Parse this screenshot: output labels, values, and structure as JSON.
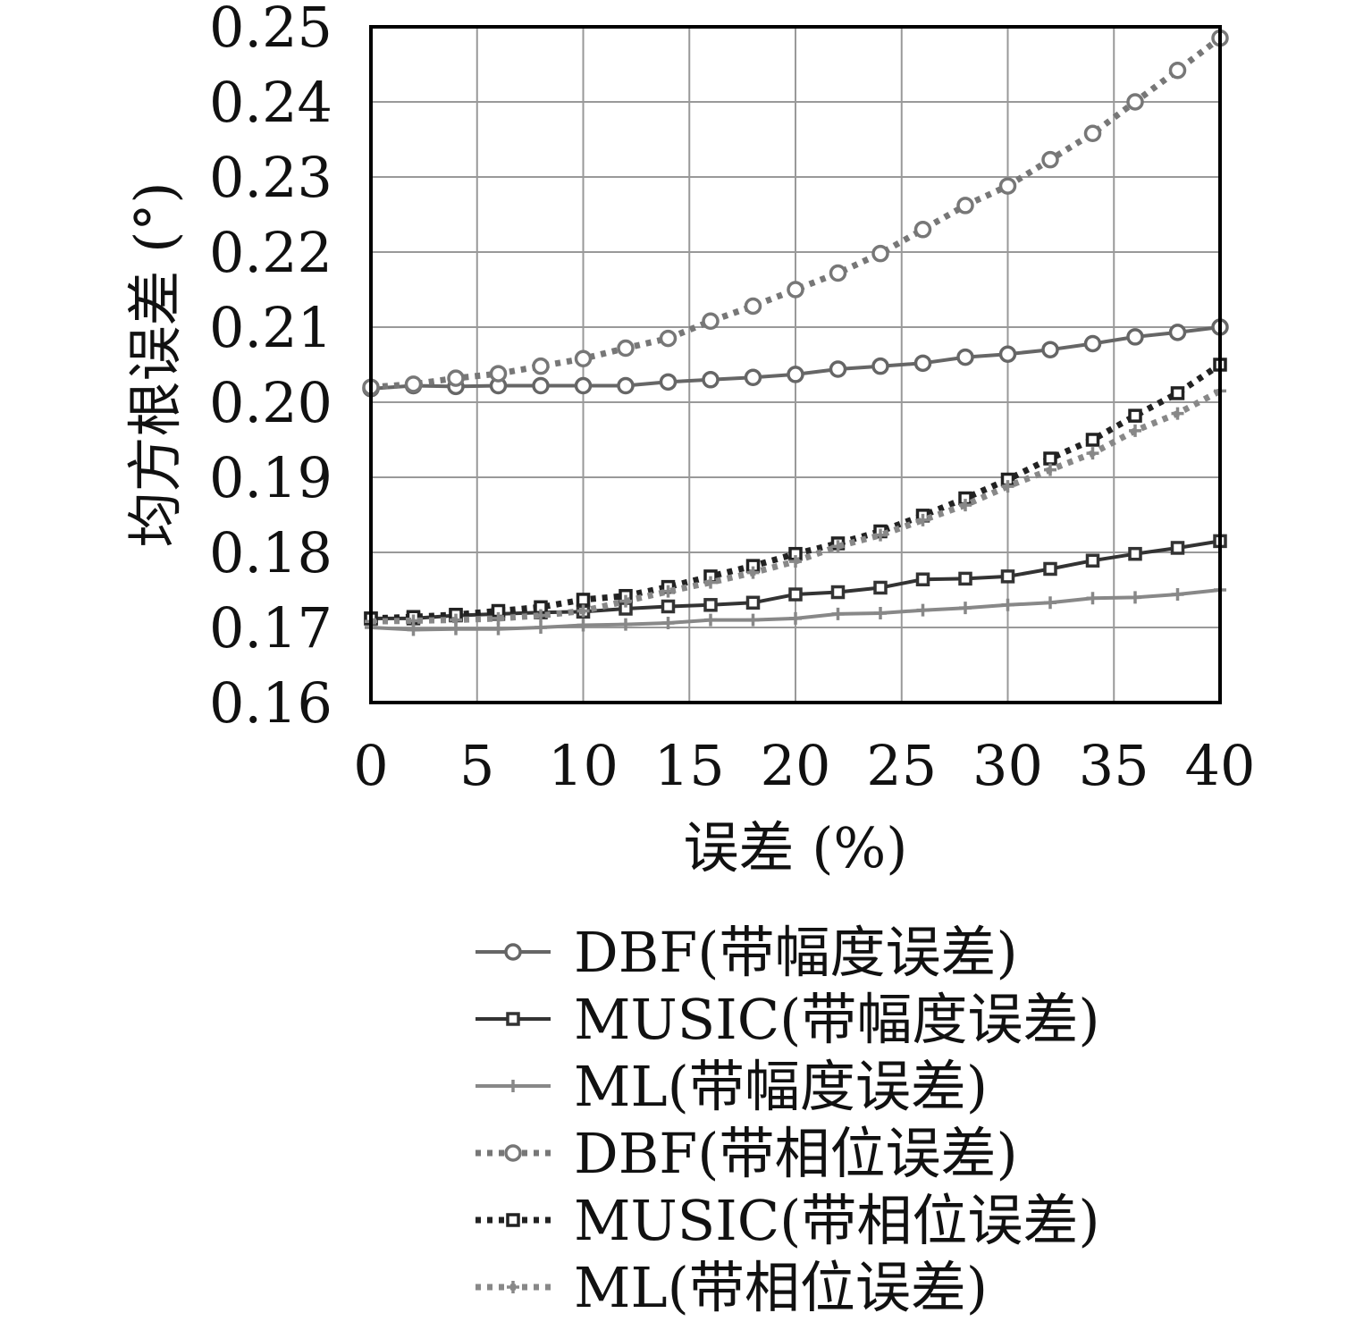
{
  "chart_data": {
    "type": "line",
    "title": "",
    "xlabel": "误差 (%)",
    "ylabel": "均方根误差 (°)",
    "xlim": [
      0,
      40
    ],
    "ylim": [
      0.16,
      0.25
    ],
    "xticks": [
      "0",
      "5",
      "10",
      "15",
      "20",
      "25",
      "30",
      "35",
      "40"
    ],
    "yticks": [
      "0.16",
      "0.17",
      "0.18",
      "0.19",
      "0.20",
      "0.21",
      "0.22",
      "0.23",
      "0.24",
      "0.25"
    ],
    "grid": true,
    "legend_position": "bottom",
    "x": [
      0,
      2,
      4,
      6,
      8,
      10,
      12,
      14,
      16,
      18,
      20,
      22,
      24,
      26,
      28,
      30,
      32,
      34,
      36,
      38,
      40
    ],
    "series": [
      {
        "name": "DBF(带幅度误差)",
        "color": "#666666",
        "dash": "solid",
        "marker": "circle",
        "values": [
          0.2018,
          0.2022,
          0.2021,
          0.2022,
          0.2022,
          0.2022,
          0.2022,
          0.2027,
          0.203,
          0.2033,
          0.2037,
          0.2044,
          0.2048,
          0.2052,
          0.206,
          0.2064,
          0.207,
          0.2078,
          0.2087,
          0.2093,
          0.21
        ]
      },
      {
        "name": "MUSIC(带幅度误差)",
        "color": "#333333",
        "dash": "solid",
        "marker": "square",
        "values": [
          0.1712,
          0.1712,
          0.1716,
          0.1718,
          0.172,
          0.1721,
          0.1725,
          0.1728,
          0.173,
          0.1733,
          0.1744,
          0.1747,
          0.1753,
          0.1764,
          0.1765,
          0.1768,
          0.1778,
          0.1789,
          0.1798,
          0.1806,
          0.1815
        ]
      },
      {
        "name": "ML(带幅度误差)",
        "color": "#888888",
        "dash": "solid",
        "marker": "plus",
        "values": [
          0.17,
          0.1697,
          0.1698,
          0.1698,
          0.17,
          0.1703,
          0.1704,
          0.1706,
          0.171,
          0.171,
          0.1712,
          0.1718,
          0.1719,
          0.1723,
          0.1726,
          0.173,
          0.1733,
          0.1739,
          0.174,
          0.1744,
          0.175
        ]
      },
      {
        "name": "DBF(带相位误差)",
        "color": "#777777",
        "dash": "dotted",
        "marker": "circle",
        "values": [
          0.202,
          0.2024,
          0.2032,
          0.2038,
          0.2048,
          0.2058,
          0.2072,
          0.2085,
          0.2108,
          0.2128,
          0.215,
          0.2172,
          0.2198,
          0.223,
          0.2262,
          0.2288,
          0.2323,
          0.2358,
          0.24,
          0.2442,
          0.2485
        ]
      },
      {
        "name": "MUSIC(带相位误差)",
        "color": "#222222",
        "dash": "dotted",
        "marker": "square",
        "values": [
          0.1712,
          0.1714,
          0.1717,
          0.1722,
          0.1727,
          0.1737,
          0.1742,
          0.1754,
          0.1768,
          0.1782,
          0.1798,
          0.1812,
          0.1828,
          0.1849,
          0.1872,
          0.1897,
          0.1925,
          0.195,
          0.1982,
          0.2012,
          0.205
        ]
      },
      {
        "name": "ML(带相位误差)",
        "color": "#888888",
        "dash": "dotted",
        "marker": "plus",
        "values": [
          0.1708,
          0.1709,
          0.171,
          0.1712,
          0.1716,
          0.1722,
          0.1735,
          0.1748,
          0.176,
          0.1773,
          0.1788,
          0.1808,
          0.1823,
          0.1843,
          0.1863,
          0.1888,
          0.191,
          0.1932,
          0.1962,
          0.1985,
          0.2015
        ]
      }
    ]
  }
}
